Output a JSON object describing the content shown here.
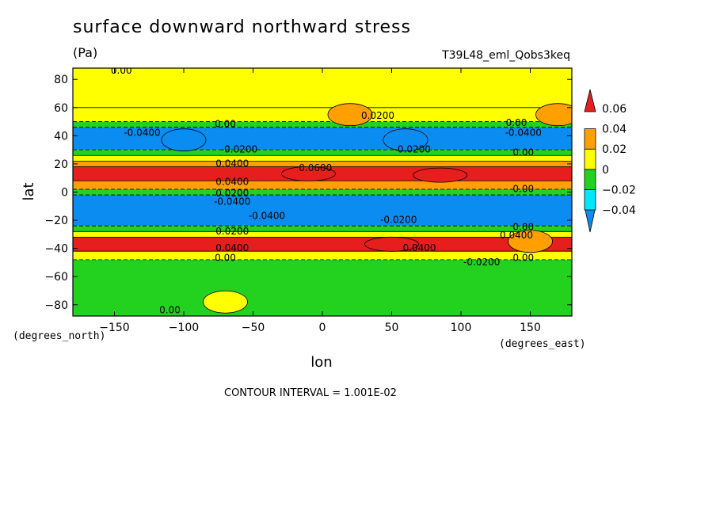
{
  "header": {
    "title": "surface downward northward stress",
    "units": "(Pa)",
    "run_id": "T39L48_eml_Qobs3keq",
    "contour_interval": "CONTOUR INTERVAL = 1.001E-02"
  },
  "chart_data": {
    "type": "heatmap",
    "title": "surface downward northward stress",
    "xlabel": "lon",
    "ylabel": "lat",
    "x_units": "(degrees_east)",
    "y_units": "(degrees_north)",
    "xlim": [
      -180,
      180
    ],
    "ylim": [
      -88,
      88
    ],
    "x_ticks": [
      -150,
      -100,
      -50,
      0,
      50,
      100,
      150
    ],
    "y_ticks": [
      -80,
      -60,
      -40,
      -20,
      0,
      20,
      40,
      60,
      80
    ],
    "x_tick_labels": [
      "−150",
      "−100",
      "−50",
      "0",
      "50",
      "100",
      "150"
    ],
    "y_tick_labels": [
      "−80",
      "−60",
      "−40",
      "−20",
      "0",
      "20",
      "40",
      "60",
      "80"
    ],
    "colorbar": {
      "levels": [
        -0.04,
        -0.02,
        0,
        0.02,
        0.04,
        0.06
      ],
      "labels": [
        "−0.04",
        "−0.02",
        "0",
        "0.02",
        "0.04",
        "0.06"
      ],
      "colors": [
        "#0a8cf0",
        "#00e6ff",
        "#23d21e",
        "#ffff00",
        "#ffa000",
        "#e61e1e"
      ]
    },
    "zonal_mean_bands": [
      {
        "lat": [
          60,
          88
        ],
        "value": 0.005
      },
      {
        "lat": [
          50,
          60
        ],
        "value": 0.015
      },
      {
        "lat": [
          46,
          50
        ],
        "value": -0.01
      },
      {
        "lat": [
          30,
          46
        ],
        "value": -0.045
      },
      {
        "lat": [
          26,
          30
        ],
        "value": -0.01
      },
      {
        "lat": [
          22,
          26
        ],
        "value": 0.01
      },
      {
        "lat": [
          18,
          22
        ],
        "value": 0.03
      },
      {
        "lat": [
          8,
          18
        ],
        "value": 0.045
      },
      {
        "lat": [
          2,
          8
        ],
        "value": 0.03
      },
      {
        "lat": [
          -2,
          2
        ],
        "value": -0.01
      },
      {
        "lat": [
          -24,
          -2
        ],
        "value": -0.045
      },
      {
        "lat": [
          -28,
          -24
        ],
        "value": -0.01
      },
      {
        "lat": [
          -32,
          -28
        ],
        "value": 0.01
      },
      {
        "lat": [
          -42,
          -32
        ],
        "value": 0.045
      },
      {
        "lat": [
          -48,
          -42
        ],
        "value": 0.01
      },
      {
        "lat": [
          -88,
          -48
        ],
        "value": -0.015
      }
    ],
    "features": [
      {
        "lon": -10,
        "lat": 13,
        "value": 0.065
      },
      {
        "lon": 50,
        "lat": -37,
        "value": 0.065
      },
      {
        "lon": 85,
        "lat": 12,
        "value": 0.065
      },
      {
        "lon": 20,
        "lat": 55,
        "value": 0.025
      },
      {
        "lon": 170,
        "lat": 55,
        "value": 0.025
      },
      {
        "lon": -100,
        "lat": 37,
        "value": -0.045
      },
      {
        "lon": 60,
        "lat": 37,
        "value": -0.045
      },
      {
        "lon": 150,
        "lat": -35,
        "value": 0.025
      },
      {
        "lon": -70,
        "lat": -78,
        "value": 0.005
      }
    ],
    "contour_labels": [
      {
        "lon": -145,
        "lat": 84,
        "text": "0.00"
      },
      {
        "lon": 40,
        "lat": 52,
        "text": "0.0200"
      },
      {
        "lon": 140,
        "lat": 47,
        "text": "0.00"
      },
      {
        "lon": -130,
        "lat": 40,
        "text": "-0.0400"
      },
      {
        "lon": -70,
        "lat": 46,
        "text": "0.00"
      },
      {
        "lon": 145,
        "lat": 40,
        "text": "-0.0400"
      },
      {
        "lon": -60,
        "lat": 28,
        "text": "-0.0200"
      },
      {
        "lon": 65,
        "lat": 28,
        "text": "-0.0200"
      },
      {
        "lon": 145,
        "lat": 26,
        "text": "0.00"
      },
      {
        "lon": -65,
        "lat": 18,
        "text": "0.0400"
      },
      {
        "lon": -5,
        "lat": 15,
        "text": "0.0600"
      },
      {
        "lon": -65,
        "lat": 5,
        "text": "0.0400"
      },
      {
        "lon": -65,
        "lat": -3,
        "text": "0.0200"
      },
      {
        "lon": -65,
        "lat": -9,
        "text": "-0.0400"
      },
      {
        "lon": -40,
        "lat": -19,
        "text": "-0.0400"
      },
      {
        "lon": 145,
        "lat": 0,
        "text": "0.00"
      },
      {
        "lon": 55,
        "lat": -22,
        "text": "-0.0200"
      },
      {
        "lon": 145,
        "lat": -27,
        "text": "0.00"
      },
      {
        "lon": -65,
        "lat": -30,
        "text": "0.0200"
      },
      {
        "lon": 140,
        "lat": -33,
        "text": "0.0400"
      },
      {
        "lon": -65,
        "lat": -42,
        "text": "0.0400"
      },
      {
        "lon": 70,
        "lat": -42,
        "text": "0.0400"
      },
      {
        "lon": -70,
        "lat": -49,
        "text": "0.00"
      },
      {
        "lon": 145,
        "lat": -49,
        "text": "0.00"
      },
      {
        "lon": 115,
        "lat": -52,
        "text": "-0.0200"
      },
      {
        "lon": -110,
        "lat": -86,
        "text": "0.00"
      }
    ]
  }
}
